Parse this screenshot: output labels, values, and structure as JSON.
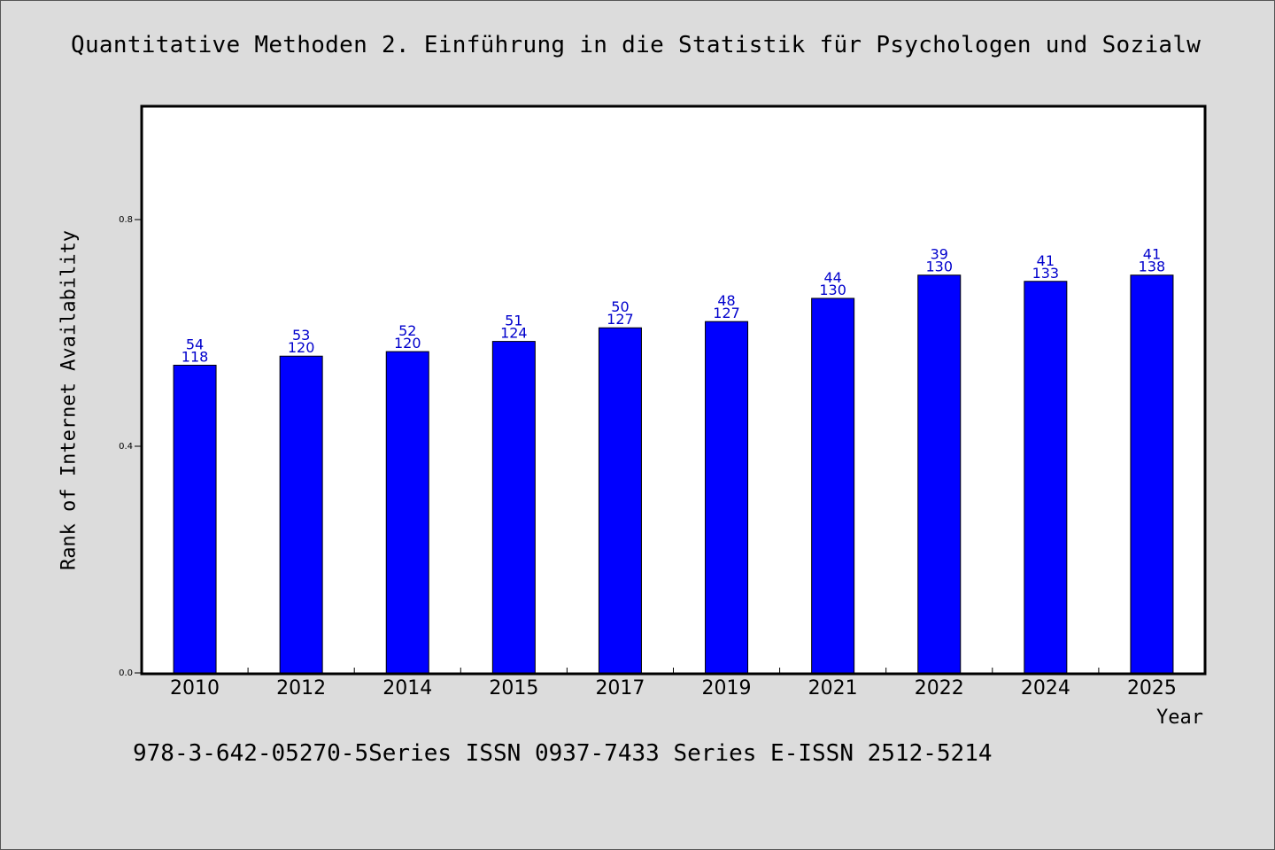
{
  "title": "Quantitative Methoden 2. Einführung in die Statistik für Psychologen und Sozialw",
  "footer": "978-3-642-05270-5Series ISSN 0937-7433 Series E-ISSN 2512-5214",
  "colors": {
    "background": "#dcdcdc",
    "plot_background": "#ffffff",
    "bar": "#0000ff",
    "data_label": "#0000cc"
  },
  "chart_data": {
    "type": "bar",
    "title": "Quantitative Methoden 2. Einführung in die Statistik für Psychologen und Sozialw",
    "xlabel": "Year",
    "ylabel": "Rank of Internet Availability",
    "categories": [
      "2010",
      "2012",
      "2014",
      "2015",
      "2017",
      "2019",
      "2021",
      "2022",
      "2024",
      "2025"
    ],
    "values": [
      0.543,
      0.559,
      0.567,
      0.585,
      0.609,
      0.62,
      0.661,
      0.702,
      0.691,
      0.702
    ],
    "labels_top": [
      "54",
      "53",
      "52",
      "51",
      "50",
      "48",
      "44",
      "39",
      "41",
      "41"
    ],
    "labels_bottom": [
      "118",
      "120",
      "120",
      "124",
      "127",
      "127",
      "130",
      "130",
      "133",
      "138"
    ],
    "ylim": [
      0,
      1.0
    ],
    "yticks": [
      0.0,
      0.4,
      0.8
    ],
    "ytick_labels": [
      "0.0",
      "0.4",
      "0.8"
    ],
    "grid": false,
    "legend": "none"
  }
}
